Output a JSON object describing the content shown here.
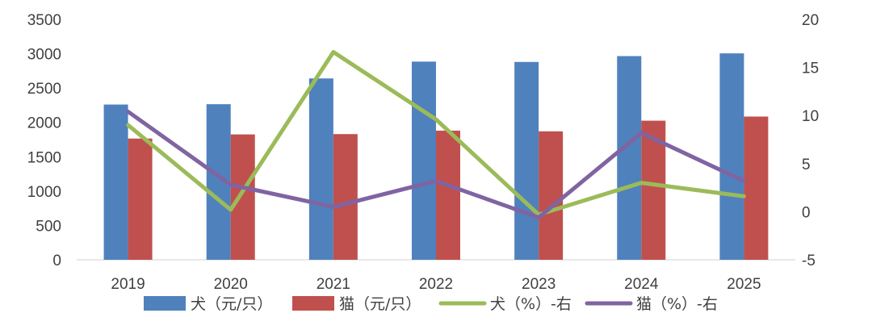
{
  "chart_data": {
    "type": "bar+line",
    "title": "",
    "categories": [
      "2019",
      "2020",
      "2021",
      "2022",
      "2023",
      "2024",
      "2025"
    ],
    "ylim_left": [
      0,
      3500
    ],
    "yticks_left": [
      "0",
      "500",
      "1000",
      "1500",
      "2000",
      "2500",
      "3000",
      "3500"
    ],
    "ylim_right": [
      -5,
      20
    ],
    "yticks_right": [
      "-5",
      "0",
      "5",
      "10",
      "15",
      "20"
    ],
    "grid": false,
    "legend_position": "bottom",
    "series": [
      {
        "name": "犬（元/只）",
        "type": "bar",
        "axis": "left",
        "color": "#4F81BD",
        "values": [
          2260,
          2265,
          2640,
          2885,
          2880,
          2965,
          3005
        ]
      },
      {
        "name": "猫（元/只）",
        "type": "bar",
        "axis": "left",
        "color": "#C0504D",
        "values": [
          1765,
          1825,
          1830,
          1880,
          1870,
          2025,
          2085
        ]
      },
      {
        "name": "犬（%）-右",
        "type": "line",
        "axis": "right",
        "color": "#9BBB59",
        "values": [
          9.0,
          0.2,
          16.6,
          9.6,
          -0.3,
          3.0,
          1.6
        ]
      },
      {
        "name": "猫（%）-右",
        "type": "line",
        "axis": "right",
        "color": "#8064A2",
        "values": [
          10.4,
          2.8,
          0.5,
          3.2,
          -0.6,
          8.2,
          3.2
        ]
      }
    ]
  }
}
